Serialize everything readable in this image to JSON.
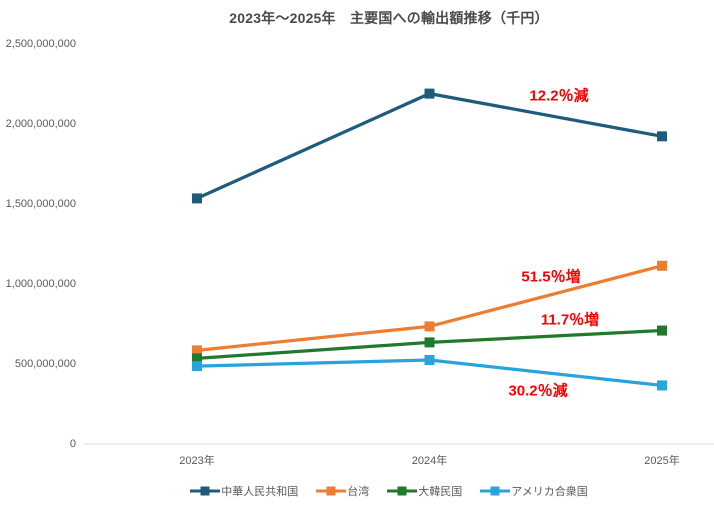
{
  "title": "2023年〜2025年　主要国への輸出額推移（千円）",
  "chart_data": {
    "type": "line",
    "title": "2023年〜2025年　主要国への輸出額推移（千円）",
    "x": [
      "2023年",
      "2024年",
      "2025年"
    ],
    "series": [
      {
        "name": "中華人民共和国",
        "color": "#1E5C7D",
        "values": [
          1535000000,
          2190000000,
          1923000000
        ]
      },
      {
        "name": "台湾",
        "color": "#ED7D31",
        "values": [
          585000000,
          735000000,
          1114000000
        ]
      },
      {
        "name": "大韓民国",
        "color": "#217A2C",
        "values": [
          535000000,
          635000000,
          709000000
        ]
      },
      {
        "name": "アメリカ合衆国",
        "color": "#29A3DC",
        "values": [
          487000000,
          525000000,
          366000000
        ]
      }
    ],
    "ylim": [
      0,
      2500000000
    ],
    "y_ticks": [
      0,
      500000000,
      1000000000,
      1500000000,
      2000000000,
      2500000000
    ],
    "grid": false,
    "marker": "square",
    "legend_position": "bottom",
    "annotations": [
      {
        "text": "12.2％減",
        "color": "#FF0000",
        "x": 559,
        "y": 95
      },
      {
        "text": "51.5％増",
        "color": "#FF0000",
        "x": 551,
        "y": 276
      },
      {
        "text": "11.7％増",
        "color": "#FF0000",
        "x": 570,
        "y": 319
      },
      {
        "text": "30.2％減",
        "color": "#FF0000",
        "x": 538,
        "y": 390
      }
    ],
    "axis_line_color": "#D9D9D9",
    "tick_label_color": "#595959"
  }
}
